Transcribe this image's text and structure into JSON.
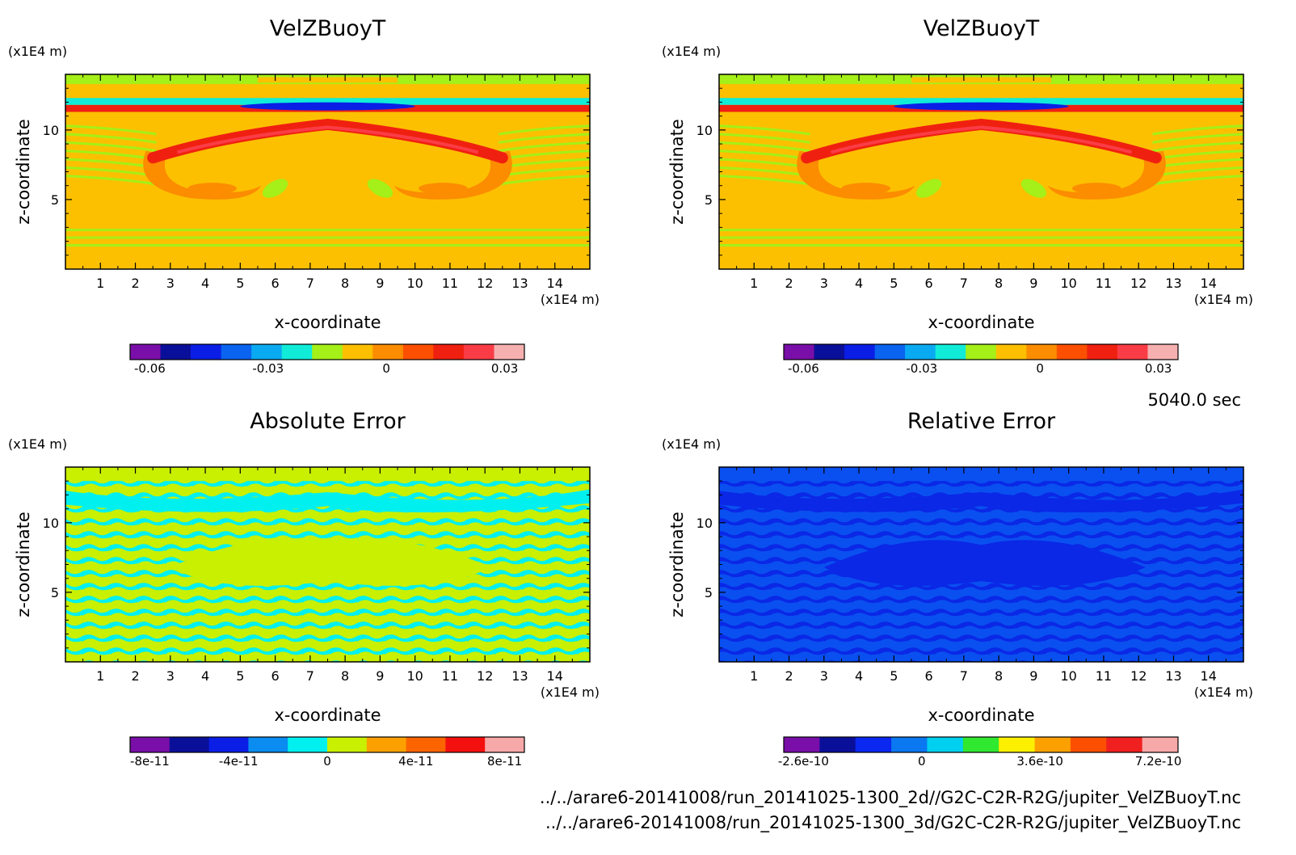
{
  "time_label": "5040.0 sec",
  "files": [
    "../../arare6-20141008/run_20141025-1300_2d//G2C-C2R-R2G/jupiter_VelZBuoyT.nc",
    "../../arare6-20141008/run_20141025-1300_3d/G2C-C2R-R2G/jupiter_VelZBuoyT.nc"
  ],
  "chart_data": [
    {
      "type": "heatmap",
      "title": "VelZBuoyT",
      "xlabel": "x-coordinate",
      "x_unit": "(x1E4 m)",
      "ylabel": "z-coordinate",
      "y_unit": "(x1E4 m)",
      "xticks": [
        "1",
        "2",
        "3",
        "4",
        "5",
        "6",
        "7",
        "8",
        "9",
        "10",
        "11",
        "12",
        "13",
        "14"
      ],
      "yticks": [
        "5",
        "10"
      ],
      "pattern": "field",
      "colorbar": {
        "colors": [
          "#7a0ea8",
          "#0a0f9a",
          "#0a1ee6",
          "#0a64f0",
          "#0aaaf2",
          "#10ecd8",
          "#a4f018",
          "#fcc000",
          "#fc8c00",
          "#fc5000",
          "#f02010",
          "#fa3c46",
          "#f7b0b0"
        ],
        "tick_labels": [
          "-0.06",
          "-0.03",
          "0",
          "0.03"
        ]
      }
    },
    {
      "type": "heatmap",
      "title": "VelZBuoyT",
      "xlabel": "x-coordinate",
      "x_unit": "(x1E4 m)",
      "ylabel": "z-coordinate",
      "y_unit": "(x1E4 m)",
      "xticks": [
        "1",
        "2",
        "3",
        "4",
        "5",
        "6",
        "7",
        "8",
        "9",
        "10",
        "11",
        "12",
        "13",
        "14"
      ],
      "yticks": [
        "5",
        "10"
      ],
      "pattern": "field",
      "colorbar": {
        "colors": [
          "#7a0ea8",
          "#0a0f9a",
          "#0a1ee6",
          "#0a64f0",
          "#0aaaf2",
          "#10ecd8",
          "#a4f018",
          "#fcc000",
          "#fc8c00",
          "#fc5000",
          "#f02010",
          "#fa3c46",
          "#f7b0b0"
        ],
        "tick_labels": [
          "-0.06",
          "-0.03",
          "0",
          "0.03"
        ]
      }
    },
    {
      "type": "heatmap",
      "title": "Absolute Error",
      "xlabel": "x-coordinate",
      "x_unit": "(x1E4 m)",
      "ylabel": "z-coordinate",
      "y_unit": "(x1E4 m)",
      "xticks": [
        "1",
        "2",
        "3",
        "4",
        "5",
        "6",
        "7",
        "8",
        "9",
        "10",
        "11",
        "12",
        "13",
        "14"
      ],
      "yticks": [
        "5",
        "10"
      ],
      "pattern": "abs",
      "colorbar": {
        "colors": [
          "#7a0ea8",
          "#0a0f9a",
          "#0a1ee6",
          "#0a8cf0",
          "#00f0f0",
          "#c8f000",
          "#fca000",
          "#fc6400",
          "#f51010",
          "#f7a8a8"
        ],
        "tick_labels": [
          "-8e-11",
          "-4e-11",
          "0",
          "4e-11",
          "8e-11"
        ]
      }
    },
    {
      "type": "heatmap",
      "title": "Relative Error",
      "xlabel": "x-coordinate",
      "x_unit": "(x1E4 m)",
      "ylabel": "z-coordinate",
      "y_unit": "(x1E4 m)",
      "xticks": [
        "1",
        "2",
        "3",
        "4",
        "5",
        "6",
        "7",
        "8",
        "9",
        "10",
        "11",
        "12",
        "13",
        "14"
      ],
      "yticks": [
        "5",
        "10"
      ],
      "pattern": "rel",
      "colorbar": {
        "colors": [
          "#7a0ea8",
          "#0a0f9a",
          "#0a28f0",
          "#0a78f0",
          "#00d0f0",
          "#30e830",
          "#fcf000",
          "#fca000",
          "#fc5000",
          "#f02020",
          "#f7a8a8"
        ],
        "tick_labels": [
          "-2.6e-10",
          "0",
          "3.6e-10",
          "7.2e-10"
        ]
      }
    }
  ]
}
